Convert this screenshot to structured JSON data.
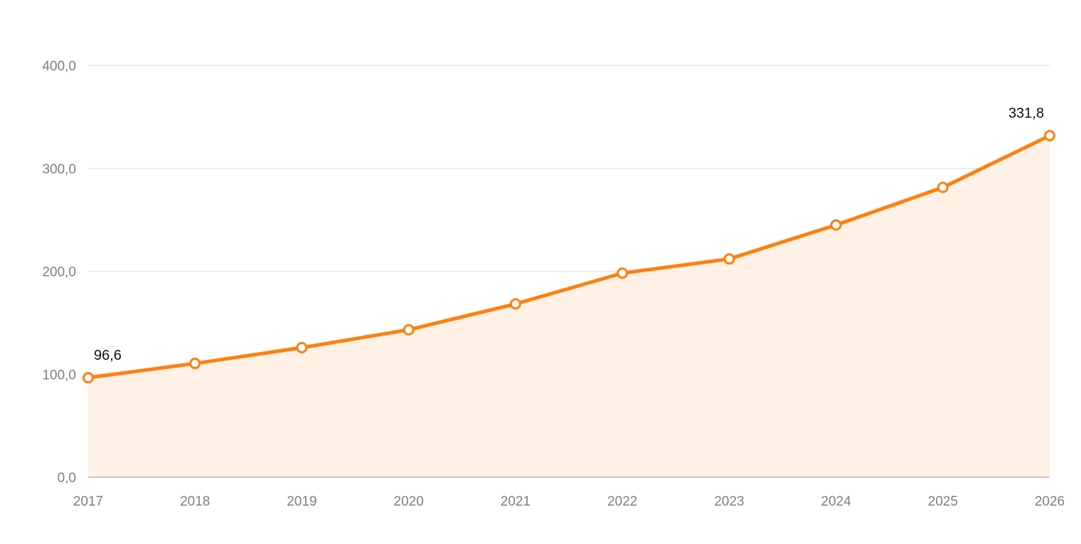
{
  "chart_data": {
    "type": "area",
    "title": "",
    "xlabel": "",
    "ylabel": "",
    "x": [
      "2017",
      "2018",
      "2019",
      "2020",
      "2021",
      "2022",
      "2023",
      "2024",
      "2025",
      "2026"
    ],
    "series": [
      {
        "values": [
          96.6,
          110.5,
          125.8,
          143.2,
          168.3,
          198.2,
          212.0,
          245.0,
          281.5,
          331.8
        ],
        "color": "#ff7f0e",
        "fill_color": "#fff1e5"
      }
    ],
    "ylim": [
      0,
      400
    ],
    "y_ticks": [
      "0,0",
      "100,0",
      "200,0",
      "300,0",
      "400,0"
    ],
    "y_tick_values": [
      0,
      100,
      200,
      300,
      400
    ],
    "data_labels": [
      {
        "index": 0,
        "text": "96,6"
      },
      {
        "index": 9,
        "text": "331,8"
      }
    ],
    "grid": true,
    "legend": "none"
  }
}
